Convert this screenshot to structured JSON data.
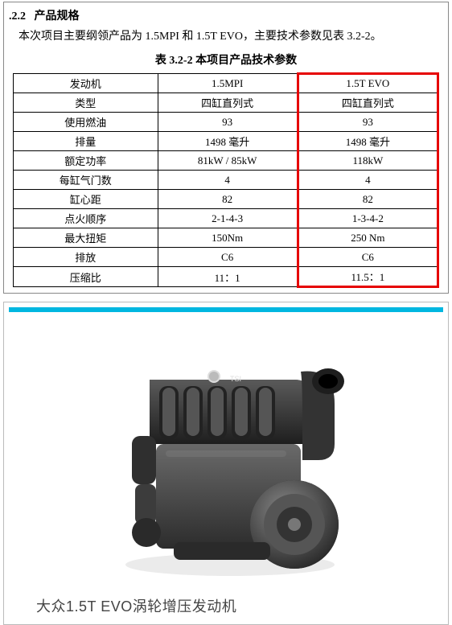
{
  "section": {
    "number": ".2.2",
    "title": "产品规格"
  },
  "intro": "本次项目主要纲领产品为 1.5MPI 和 1.5T EVO，主要技术参数见表 3.2-2。",
  "table": {
    "caption": "表 3.2-2 本项目产品技术参数",
    "columns": [
      "发动机",
      "1.5MPI",
      "1.5T EVO"
    ],
    "rows": [
      [
        "类型",
        "四缸直列式",
        "四缸直列式"
      ],
      [
        "使用燃油",
        "93",
        "93"
      ],
      [
        "排量",
        "1498 毫升",
        "1498 毫升"
      ],
      [
        "额定功率",
        "81kW / 85kW",
        "118kW"
      ],
      [
        "每缸气门数",
        "4",
        "4"
      ],
      [
        "缸心距",
        "82",
        "82"
      ],
      [
        "点火顺序",
        "2-1-4-3",
        "1-3-4-2"
      ],
      [
        "最大扭矩",
        "150Nm",
        "250 Nm"
      ],
      [
        "排放",
        "C6",
        "C6"
      ],
      [
        "压缩比",
        "11：1",
        "11.5：1"
      ]
    ],
    "highlight_column_index": 2,
    "highlight_color": "#e60000"
  },
  "figure": {
    "caption": "大众1.5T EVO涡轮增压发动机",
    "cyan_bar_color": "#00b7e0"
  },
  "colors": {
    "text": "#000000",
    "border": "#000000",
    "outer_border": "#888888",
    "panel_border": "#bbbbbb"
  }
}
